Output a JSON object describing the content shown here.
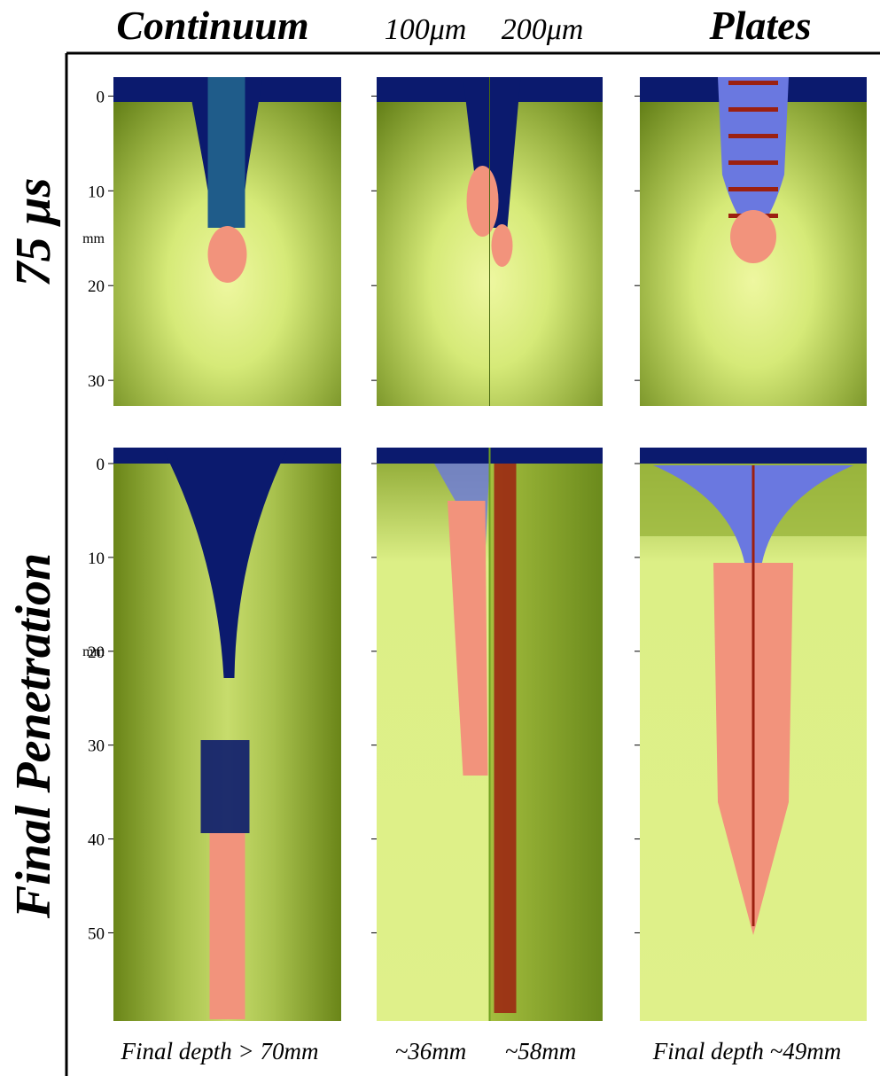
{
  "column_titles": [
    "Continuum",
    "100μm",
    "200μm",
    "Plates"
  ],
  "rows": [
    {
      "label": "75 μs",
      "axis": {
        "unit": "mm",
        "ticks": [
          0,
          10,
          20,
          30
        ],
        "ylim": [
          -2,
          32.7
        ]
      }
    },
    {
      "label": "Final Penetration",
      "axis": {
        "unit": "mm",
        "ticks": [
          0,
          10,
          20,
          30,
          40,
          50
        ],
        "ylim": [
          -1.7,
          59.4
        ]
      }
    }
  ],
  "captions": [
    "Final depth > 70mm",
    "~36mm",
    "~58mm",
    "Final depth ~49mm"
  ]
}
